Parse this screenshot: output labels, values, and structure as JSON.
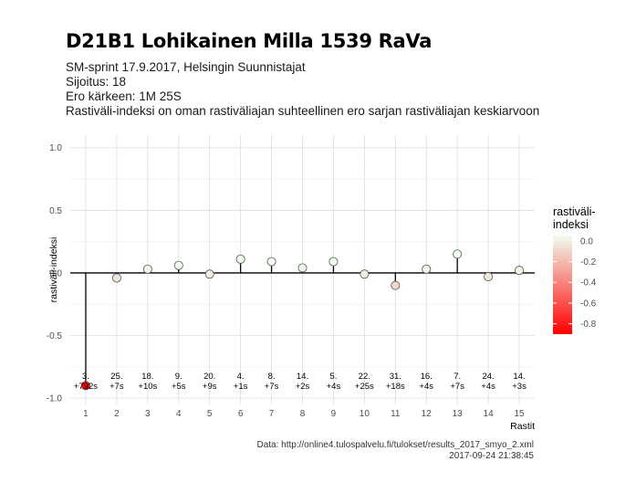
{
  "header": {
    "title": "D21B1 Lohikainen Milla 1539 RaVa",
    "subtitle_lines": [
      "SM-sprint 17.9.2017, Helsingin Suunnistajat",
      "Sijoitus: 18",
      "Ero kärkeen: 1M 25S",
      "Rastiväli-indeksi on oman rastiväliajan suhteellinen ero sarjan rastiväliajan keskiarvoon"
    ]
  },
  "caption": {
    "source": "Data: http://online4.tulospalvelu.fi/tulokset/results_2017_smyo_2.xml",
    "timestamp": "2017-09-24 21:38:45"
  },
  "colors": {
    "high": "#f0fff0",
    "low": "#ff0000",
    "stem": "#000000",
    "grid_major": "#dcdcdc",
    "grid_minor": "#efefef"
  },
  "chart_data": {
    "type": "scatter",
    "style": "lollipop",
    "xlabel": "Rastit",
    "ylabel": "rastiväli-indeksi",
    "ylim": [
      -1.05,
      1.1
    ],
    "yticks": [
      -1.0,
      -0.5,
      0.0,
      0.5,
      1.0
    ],
    "ytick_labels": [
      "-1.0",
      "-0.5",
      "0.0",
      "0.5",
      "1.0"
    ],
    "xticks": [
      1,
      2,
      3,
      4,
      5,
      6,
      7,
      8,
      9,
      10,
      11,
      12,
      13,
      14,
      15
    ],
    "grid": true,
    "x": [
      1,
      2,
      3,
      4,
      5,
      6,
      7,
      8,
      9,
      10,
      11,
      12,
      13,
      14,
      15
    ],
    "y": [
      -0.9,
      -0.04,
      0.03,
      0.06,
      -0.01,
      0.11,
      0.09,
      0.04,
      0.09,
      -0.01,
      -0.1,
      0.03,
      0.15,
      -0.03,
      0.02
    ],
    "annotations": [
      {
        "x": 1,
        "place": "3.",
        "diff": "+792s"
      },
      {
        "x": 2,
        "place": "25.",
        "diff": "+7s"
      },
      {
        "x": 3,
        "place": "18.",
        "diff": "+10s"
      },
      {
        "x": 4,
        "place": "9.",
        "diff": "+5s"
      },
      {
        "x": 5,
        "place": "20.",
        "diff": "+9s"
      },
      {
        "x": 6,
        "place": "4.",
        "diff": "+1s"
      },
      {
        "x": 7,
        "place": "8.",
        "diff": "+7s"
      },
      {
        "x": 8,
        "place": "14.",
        "diff": "+2s"
      },
      {
        "x": 9,
        "place": "5.",
        "diff": "+4s"
      },
      {
        "x": 10,
        "place": "22.",
        "diff": "+25s"
      },
      {
        "x": 11,
        "place": "31.",
        "diff": "+18s"
      },
      {
        "x": 12,
        "place": "16.",
        "diff": "+4s"
      },
      {
        "x": 13,
        "place": "7.",
        "diff": "+7s"
      },
      {
        "x": 14,
        "place": "24.",
        "diff": "+4s"
      },
      {
        "x": 15,
        "place": "14.",
        "diff": "+3s"
      }
    ],
    "legend": {
      "title_lines": [
        "rastiväli-",
        "indeksi"
      ],
      "placement": "right",
      "range": [
        -0.9,
        0.06
      ],
      "ticks": [
        0.0,
        -0.2,
        -0.4,
        -0.6,
        -0.8
      ],
      "tick_labels": [
        "0.0",
        "-0.2",
        "-0.4",
        "-0.6",
        "-0.8"
      ]
    }
  }
}
